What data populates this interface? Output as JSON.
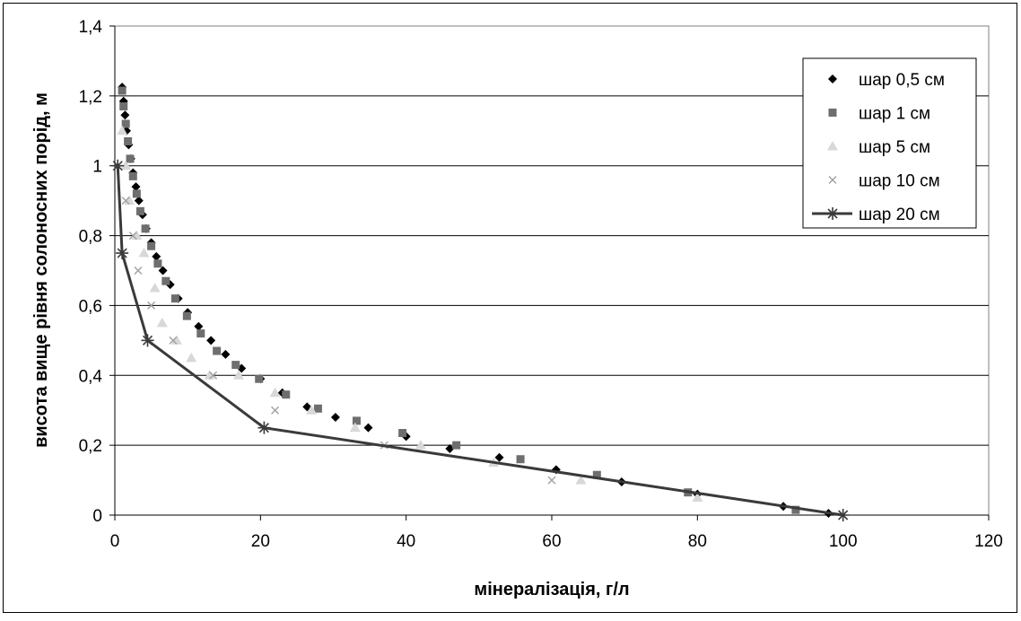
{
  "chart_data": {
    "type": "scatter",
    "title": "",
    "xlabel": "мінералізація, г/л",
    "ylabel": "висота вище рівня солоносних порід, м",
    "xlim": [
      0,
      120
    ],
    "ylim": [
      0,
      1.4
    ],
    "x_ticks": [
      "0",
      "20",
      "40",
      "60",
      "80",
      "100",
      "120"
    ],
    "y_ticks": [
      "0",
      "0,2",
      "0,4",
      "0,6",
      "0,8",
      "1",
      "1,2",
      "1,4"
    ],
    "grid": "horizontal",
    "legend_position": "top-right",
    "series": [
      {
        "name": "шар 0,5 см",
        "marker": "diamond",
        "line": false,
        "color": "#000000",
        "points": [
          [
            1.0,
            1.225
          ],
          [
            1.2,
            1.185
          ],
          [
            1.4,
            1.145
          ],
          [
            1.6,
            1.1
          ],
          [
            1.9,
            1.06
          ],
          [
            2.2,
            1.02
          ],
          [
            2.5,
            0.98
          ],
          [
            2.9,
            0.94
          ],
          [
            3.3,
            0.9
          ],
          [
            3.8,
            0.86
          ],
          [
            4.3,
            0.82
          ],
          [
            5.0,
            0.78
          ],
          [
            5.7,
            0.74
          ],
          [
            6.6,
            0.7
          ],
          [
            7.6,
            0.66
          ],
          [
            8.7,
            0.62
          ],
          [
            10.0,
            0.58
          ],
          [
            11.5,
            0.54
          ],
          [
            13.2,
            0.5
          ],
          [
            15.2,
            0.46
          ],
          [
            17.4,
            0.42
          ],
          [
            20.0,
            0.39
          ],
          [
            23.0,
            0.35
          ],
          [
            26.4,
            0.31
          ],
          [
            30.3,
            0.28
          ],
          [
            34.8,
            0.25
          ],
          [
            40.0,
            0.225
          ],
          [
            46.0,
            0.19
          ],
          [
            52.8,
            0.165
          ],
          [
            60.6,
            0.13
          ],
          [
            69.6,
            0.095
          ],
          [
            80.0,
            0.06
          ],
          [
            91.8,
            0.025
          ],
          [
            98.0,
            0.005
          ]
        ]
      },
      {
        "name": "шар 1 см",
        "marker": "square",
        "line": false,
        "color": "#6e6e6e",
        "points": [
          [
            1.0,
            1.215
          ],
          [
            1.2,
            1.17
          ],
          [
            1.5,
            1.12
          ],
          [
            1.8,
            1.07
          ],
          [
            2.1,
            1.02
          ],
          [
            2.5,
            0.97
          ],
          [
            3.0,
            0.92
          ],
          [
            3.5,
            0.87
          ],
          [
            4.2,
            0.82
          ],
          [
            5.0,
            0.77
          ],
          [
            5.9,
            0.72
          ],
          [
            7.0,
            0.67
          ],
          [
            8.3,
            0.62
          ],
          [
            9.9,
            0.57
          ],
          [
            11.8,
            0.52
          ],
          [
            14.0,
            0.47
          ],
          [
            16.6,
            0.43
          ],
          [
            19.8,
            0.39
          ],
          [
            23.5,
            0.345
          ],
          [
            27.9,
            0.305
          ],
          [
            33.2,
            0.27
          ],
          [
            39.5,
            0.235
          ],
          [
            46.9,
            0.2
          ],
          [
            55.7,
            0.16
          ],
          [
            66.2,
            0.115
          ],
          [
            78.7,
            0.065
          ],
          [
            93.5,
            0.015
          ]
        ]
      },
      {
        "name": "шар 5 см",
        "marker": "triangle",
        "line": false,
        "color": "#d8d8d8",
        "points": [
          [
            1.0,
            1.1
          ],
          [
            1.5,
            1.0
          ],
          [
            2.0,
            0.9
          ],
          [
            3.0,
            0.8
          ],
          [
            4.0,
            0.75
          ],
          [
            5.5,
            0.65
          ],
          [
            6.5,
            0.55
          ],
          [
            8.5,
            0.5
          ],
          [
            10.5,
            0.45
          ],
          [
            13.0,
            0.4
          ],
          [
            17.0,
            0.4
          ],
          [
            22.0,
            0.35
          ],
          [
            27.0,
            0.3
          ],
          [
            33.0,
            0.25
          ],
          [
            42.0,
            0.2
          ],
          [
            52.0,
            0.15
          ],
          [
            64.0,
            0.1
          ],
          [
            80.0,
            0.05
          ]
        ]
      },
      {
        "name": "шар 10 см",
        "marker": "x",
        "line": false,
        "color": "#a0a0a0",
        "points": [
          [
            1.5,
            0.9
          ],
          [
            2.5,
            0.8
          ],
          [
            3.2,
            0.7
          ],
          [
            5.0,
            0.6
          ],
          [
            8.0,
            0.5
          ],
          [
            13.5,
            0.4
          ],
          [
            22.0,
            0.3
          ],
          [
            37.0,
            0.2
          ],
          [
            60.0,
            0.1
          ]
        ]
      },
      {
        "name": "шар 20 см",
        "marker": "star",
        "line": true,
        "color": "#3a3a3a",
        "points": [
          [
            0.4,
            1.0
          ],
          [
            1.0,
            0.75
          ],
          [
            4.5,
            0.5
          ],
          [
            20.5,
            0.25
          ],
          [
            100.0,
            0.0
          ]
        ]
      }
    ]
  }
}
